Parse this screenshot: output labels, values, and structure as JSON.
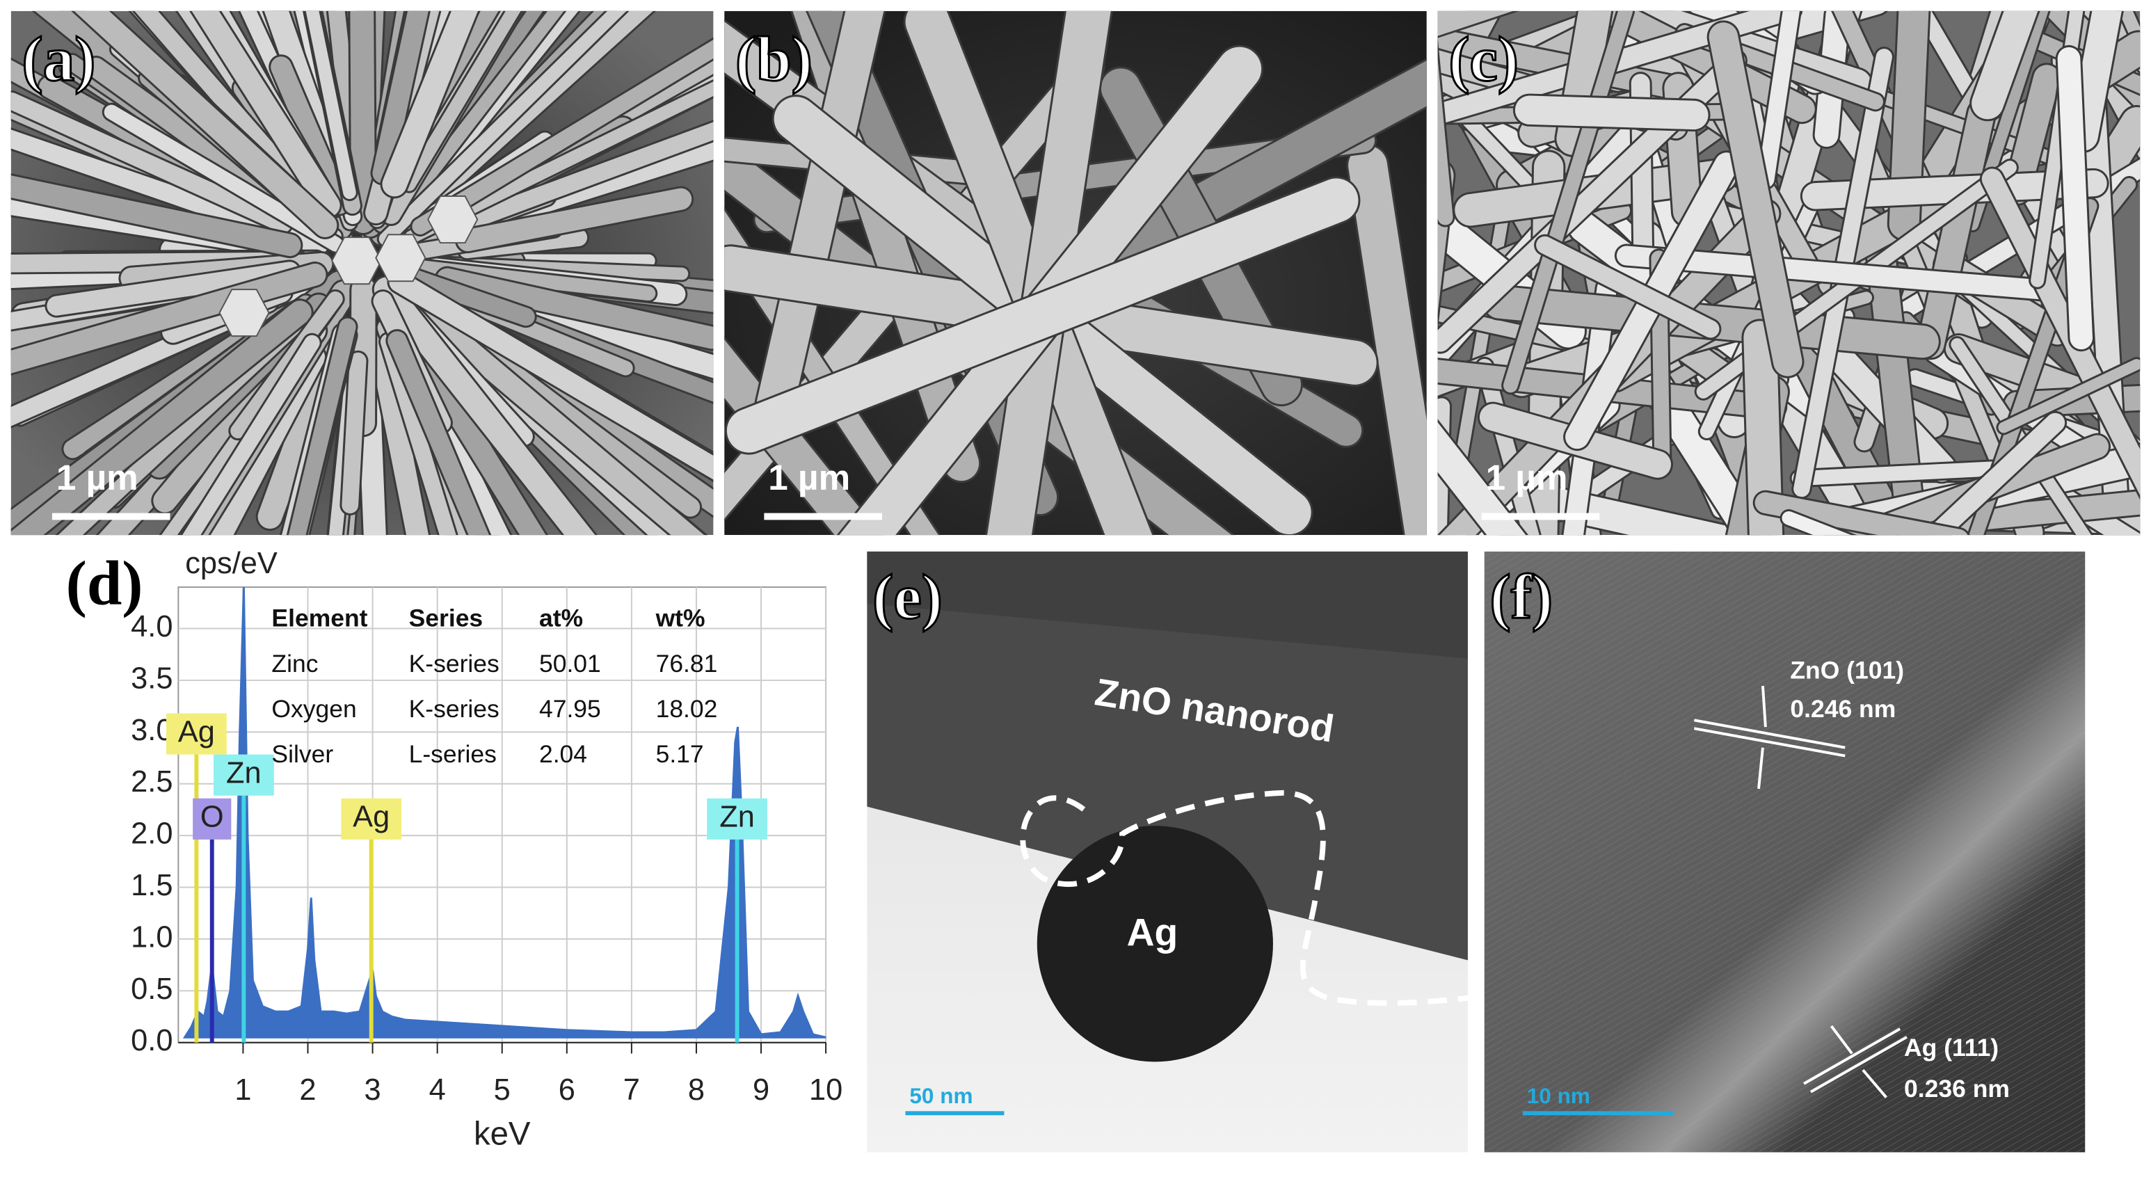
{
  "panels": [
    {
      "label": "(a)",
      "scale_bar": "1 µm"
    },
    {
      "label": "(b)",
      "scale_bar": "1 µm"
    },
    {
      "label": "(c)",
      "scale_bar": "1 µm"
    },
    {
      "label": "(d)"
    },
    {
      "label": "(e)",
      "scale_bar": "50 nm",
      "annotations": [
        "ZnO nanorod",
        "Ag"
      ]
    },
    {
      "label": "(f)",
      "scale_bar": "10 nm",
      "annotations": [
        "ZnO (101)",
        "0.246 nm",
        "Ag (111)",
        "0.236 nm"
      ]
    }
  ],
  "chart_data": {
    "type": "area",
    "y_label": "cps/eV",
    "x_label": "keV",
    "color": "#3a6fc4",
    "x": [
      0.1,
      0.2,
      0.3,
      0.4,
      0.45,
      0.52,
      0.6,
      0.7,
      0.8,
      0.9,
      0.95,
      1.01,
      1.07,
      1.15,
      1.3,
      1.5,
      1.7,
      1.9,
      2.0,
      2.05,
      2.1,
      2.2,
      2.4,
      2.6,
      2.8,
      2.95,
      3.0,
      3.05,
      3.15,
      3.3,
      3.5,
      4,
      4.5,
      5,
      5.5,
      6,
      6.5,
      7,
      7.5,
      8,
      8.3,
      8.5,
      8.6,
      8.64,
      8.7,
      8.8,
      9.0,
      9.3,
      9.5,
      9.57,
      9.65,
      9.8,
      10
    ],
    "values": [
      0.05,
      0.15,
      0.3,
      0.25,
      0.4,
      0.75,
      0.3,
      0.25,
      0.5,
      1.5,
      3.0,
      4.4,
      2.0,
      0.6,
      0.35,
      0.3,
      0.3,
      0.35,
      0.9,
      1.4,
      0.8,
      0.3,
      0.3,
      0.28,
      0.3,
      0.6,
      0.7,
      0.45,
      0.3,
      0.25,
      0.22,
      0.2,
      0.18,
      0.16,
      0.14,
      0.12,
      0.11,
      0.1,
      0.1,
      0.12,
      0.3,
      1.5,
      2.9,
      3.05,
      2.2,
      0.3,
      0.08,
      0.1,
      0.3,
      0.45,
      0.3,
      0.08,
      0.05
    ],
    "xlim": [
      0,
      10
    ],
    "ylim": [
      0,
      4.4
    ],
    "xticks": [
      1,
      2,
      3,
      4,
      5,
      6,
      7,
      8,
      9,
      10
    ],
    "yticks": [
      {
        "value": 0,
        "label": "0.0"
      },
      0.5,
      {
        "value": 1,
        "label": "1.0"
      },
      1.5,
      {
        "value": 2,
        "label": "2.0"
      },
      2.5,
      {
        "value": 3,
        "label": "3.0"
      },
      3.5,
      {
        "value": 4,
        "label": "4.0"
      }
    ],
    "grid": true,
    "peak_labels": [
      {
        "label": "Ag",
        "energy": 0.28,
        "color": "#f3ee7a",
        "line_color": "#e2dc3a"
      },
      {
        "label": "Zn",
        "energy": 1.01,
        "color": "#8ff0f0",
        "line_color": "#3fd4e6"
      },
      {
        "label": "O",
        "energy": 0.52,
        "color": "#a595e6",
        "line_color": "#2a2ab0"
      },
      {
        "label": "Ag",
        "energy": 2.98,
        "color": "#f3ee7a",
        "line_color": "#e2dc3a"
      },
      {
        "label": "Zn",
        "energy": 8.63,
        "color": "#8ff0f0",
        "line_color": "#3fd4e6"
      }
    ],
    "table": {
      "header": [
        "Element",
        "Series",
        "at%",
        "wt%"
      ],
      "rows": [
        [
          "Zinc",
          "K-series",
          50.01,
          76.81
        ],
        [
          "Oxygen",
          "K-series",
          47.95,
          18.02
        ],
        [
          "Silver",
          "L-series",
          2.04,
          5.17
        ]
      ]
    }
  }
}
